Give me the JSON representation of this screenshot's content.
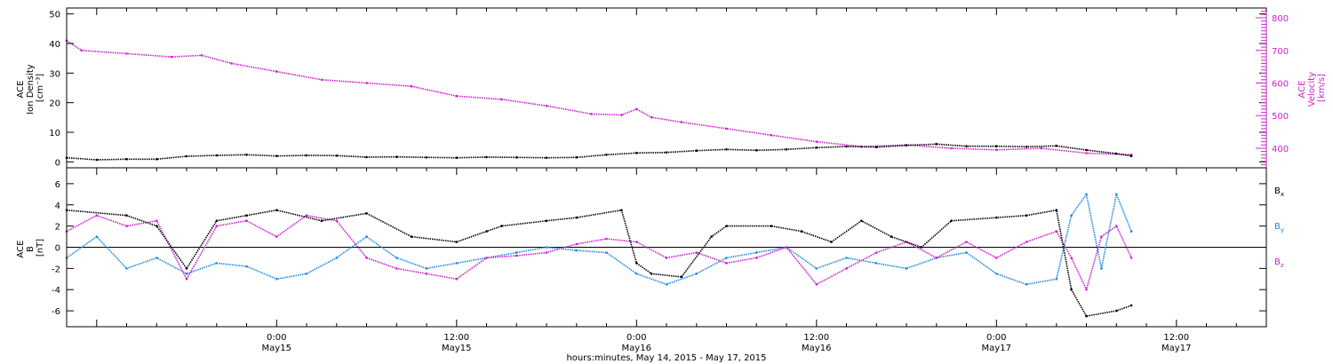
{
  "chart_data": [
    {
      "type": "scatter",
      "panel": "top",
      "xlim": [
        "2015-05-14T10:00",
        "2015-05-17T18:00"
      ],
      "ylabel": [
        "ACE",
        "Ion Density",
        "[cm⁻³]"
      ],
      "ylim": [
        -2,
        52
      ],
      "yticks": [
        0,
        10,
        20,
        30,
        40,
        50
      ],
      "y2label": [
        "ACE",
        "Velocity",
        "[km/s]"
      ],
      "y2lim": [
        340,
        830
      ],
      "y2ticks": [
        400,
        500,
        600,
        700,
        800
      ],
      "grid": false,
      "series": [
        {
          "name": "",
          "axis": "left",
          "color": "#000000",
          "points": [
            [
              "2015-05-14T10:00",
              1.4
            ],
            [
              "2015-05-14T12:00",
              0.7
            ],
            [
              "2015-05-14T14:00",
              0.9
            ],
            [
              "2015-05-14T16:00",
              0.9
            ],
            [
              "2015-05-14T18:00",
              1.9
            ],
            [
              "2015-05-14T20:00",
              2.2
            ],
            [
              "2015-05-14T22:00",
              2.4
            ],
            [
              "2015-05-15T00:00",
              2.0
            ],
            [
              "2015-05-15T02:00",
              2.2
            ],
            [
              "2015-05-15T04:00",
              2.1
            ],
            [
              "2015-05-15T06:00",
              1.6
            ],
            [
              "2015-05-15T08:00",
              1.7
            ],
            [
              "2015-05-15T10:00",
              1.5
            ],
            [
              "2015-05-15T12:00",
              1.4
            ],
            [
              "2015-05-15T14:00",
              1.6
            ],
            [
              "2015-05-15T16:00",
              1.5
            ],
            [
              "2015-05-15T18:00",
              1.4
            ],
            [
              "2015-05-15T20:00",
              1.5
            ],
            [
              "2015-05-15T22:00",
              2.4
            ],
            [
              "2015-05-16T00:00",
              3.0
            ],
            [
              "2015-05-16T02:00",
              3.2
            ],
            [
              "2015-05-16T04:00",
              3.8
            ],
            [
              "2015-05-16T06:00",
              4.2
            ],
            [
              "2015-05-16T08:00",
              3.9
            ],
            [
              "2015-05-16T10:00",
              4.2
            ],
            [
              "2015-05-16T12:00",
              4.8
            ],
            [
              "2015-05-16T14:00",
              5.2
            ],
            [
              "2015-05-16T16:00",
              5.0
            ],
            [
              "2015-05-16T18:00",
              5.6
            ],
            [
              "2015-05-16T20:00",
              6.0
            ],
            [
              "2015-05-16T22:00",
              5.3
            ],
            [
              "2015-05-17T00:00",
              5.3
            ],
            [
              "2015-05-17T02:00",
              5.1
            ],
            [
              "2015-05-17T04:00",
              5.4
            ],
            [
              "2015-05-17T06:00",
              4.0
            ],
            [
              "2015-05-17T08:00",
              2.8
            ],
            [
              "2015-05-17T09:00",
              2.0
            ]
          ]
        },
        {
          "name": "",
          "axis": "right",
          "color": "#cc22cc",
          "points": [
            [
              "2015-05-14T10:00",
              730
            ],
            [
              "2015-05-14T11:00",
              700
            ],
            [
              "2015-05-14T14:00",
              690
            ],
            [
              "2015-05-14T17:00",
              680
            ],
            [
              "2015-05-14T19:00",
              685
            ],
            [
              "2015-05-14T21:00",
              660
            ],
            [
              "2015-05-15T00:00",
              635
            ],
            [
              "2015-05-15T03:00",
              610
            ],
            [
              "2015-05-15T06:00",
              600
            ],
            [
              "2015-05-15T09:00",
              590
            ],
            [
              "2015-05-15T12:00",
              560
            ],
            [
              "2015-05-15T15:00",
              550
            ],
            [
              "2015-05-15T18:00",
              530
            ],
            [
              "2015-05-15T21:00",
              505
            ],
            [
              "2015-05-15T23:00",
              502
            ],
            [
              "2015-05-16T00:00",
              520
            ],
            [
              "2015-05-16T01:00",
              495
            ],
            [
              "2015-05-16T03:00",
              480
            ],
            [
              "2015-05-16T06:00",
              460
            ],
            [
              "2015-05-16T09:00",
              440
            ],
            [
              "2015-05-16T12:00",
              420
            ],
            [
              "2015-05-16T15:00",
              405
            ],
            [
              "2015-05-16T18:00",
              410
            ],
            [
              "2015-05-16T21:00",
              400
            ],
            [
              "2015-05-17T00:00",
              395
            ],
            [
              "2015-05-17T03:00",
              400
            ],
            [
              "2015-05-17T06:00",
              385
            ],
            [
              "2015-05-17T09:00",
              380
            ]
          ]
        }
      ]
    },
    {
      "type": "scatter",
      "panel": "bottom",
      "xlim": [
        "2015-05-14T10:00",
        "2015-05-17T18:00"
      ],
      "xticks": [
        {
          "t": "2015-05-15T00:00",
          "line1": "0:00",
          "line2": "May15"
        },
        {
          "t": "2015-05-15T12:00",
          "line1": "12:00",
          "line2": "May15"
        },
        {
          "t": "2015-05-16T00:00",
          "line1": "0:00",
          "line2": "May16"
        },
        {
          "t": "2015-05-16T12:00",
          "line1": "12:00",
          "line2": "May16"
        },
        {
          "t": "2015-05-17T00:00",
          "line1": "0:00",
          "line2": "May17"
        },
        {
          "t": "2015-05-17T12:00",
          "line1": "12:00",
          "line2": "May17"
        }
      ],
      "xlabel": "hours:minutes, May 14, 2015 - May 17, 2015",
      "ylabel": [
        "ACE",
        "B",
        "[nT]"
      ],
      "ylim": [
        -7.5,
        7.5
      ],
      "yticks": [
        -6,
        -4,
        -2,
        0,
        2,
        4,
        6
      ],
      "zero_line": true,
      "legend_position": "right",
      "series": [
        {
          "name": "Bx",
          "legend": {
            "base": "B",
            "sub": "x"
          },
          "color": "#000000",
          "points": [
            [
              "2015-05-14T10:00",
              3.5
            ],
            [
              "2015-05-14T14:00",
              3.0
            ],
            [
              "2015-05-14T16:00",
              2.0
            ],
            [
              "2015-05-14T18:00",
              -2.0
            ],
            [
              "2015-05-14T20:00",
              2.5
            ],
            [
              "2015-05-14T22:00",
              3.0
            ],
            [
              "2015-05-15T00:00",
              3.5
            ],
            [
              "2015-05-15T03:00",
              2.5
            ],
            [
              "2015-05-15T06:00",
              3.2
            ],
            [
              "2015-05-15T09:00",
              1.0
            ],
            [
              "2015-05-15T12:00",
              0.5
            ],
            [
              "2015-05-15T14:00",
              1.5
            ],
            [
              "2015-05-15T15:00",
              2.0
            ],
            [
              "2015-05-15T18:00",
              2.5
            ],
            [
              "2015-05-15T20:00",
              2.8
            ],
            [
              "2015-05-15T23:00",
              3.5
            ],
            [
              "2015-05-16T00:00",
              -1.5
            ],
            [
              "2015-05-16T01:00",
              -2.5
            ],
            [
              "2015-05-16T03:00",
              -2.8
            ],
            [
              "2015-05-16T05:00",
              1.0
            ],
            [
              "2015-05-16T06:00",
              2.0
            ],
            [
              "2015-05-16T09:00",
              2.0
            ],
            [
              "2015-05-16T11:00",
              1.5
            ],
            [
              "2015-05-16T13:00",
              0.5
            ],
            [
              "2015-05-16T15:00",
              2.5
            ],
            [
              "2015-05-16T17:00",
              1.0
            ],
            [
              "2015-05-16T19:00",
              0.0
            ],
            [
              "2015-05-16T21:00",
              2.5
            ],
            [
              "2015-05-17T00:00",
              2.8
            ],
            [
              "2015-05-17T02:00",
              3.0
            ],
            [
              "2015-05-17T04:00",
              3.5
            ],
            [
              "2015-05-17T05:00",
              -4.0
            ],
            [
              "2015-05-17T06:00",
              -6.5
            ],
            [
              "2015-05-17T08:00",
              -6.0
            ],
            [
              "2015-05-17T09:00",
              -5.5
            ]
          ]
        },
        {
          "name": "By",
          "legend": {
            "base": "B",
            "sub": "y"
          },
          "color": "#1f88e0",
          "points": [
            [
              "2015-05-14T10:00",
              -1.0
            ],
            [
              "2015-05-14T12:00",
              1.0
            ],
            [
              "2015-05-14T14:00",
              -2.0
            ],
            [
              "2015-05-14T16:00",
              -1.0
            ],
            [
              "2015-05-14T18:00",
              -2.5
            ],
            [
              "2015-05-14T20:00",
              -1.5
            ],
            [
              "2015-05-14T22:00",
              -1.8
            ],
            [
              "2015-05-15T00:00",
              -3.0
            ],
            [
              "2015-05-15T02:00",
              -2.5
            ],
            [
              "2015-05-15T04:00",
              -1.0
            ],
            [
              "2015-05-15T06:00",
              1.0
            ],
            [
              "2015-05-15T08:00",
              -1.0
            ],
            [
              "2015-05-15T10:00",
              -2.0
            ],
            [
              "2015-05-15T12:00",
              -1.5
            ],
            [
              "2015-05-15T14:00",
              -1.0
            ],
            [
              "2015-05-15T16:00",
              -0.5
            ],
            [
              "2015-05-15T18:00",
              0.0
            ],
            [
              "2015-05-15T20:00",
              -0.3
            ],
            [
              "2015-05-15T22:00",
              -0.5
            ],
            [
              "2015-05-16T00:00",
              -2.5
            ],
            [
              "2015-05-16T02:00",
              -3.5
            ],
            [
              "2015-05-16T04:00",
              -2.5
            ],
            [
              "2015-05-16T06:00",
              -1.0
            ],
            [
              "2015-05-16T08:00",
              -0.5
            ],
            [
              "2015-05-16T10:00",
              0.0
            ],
            [
              "2015-05-16T12:00",
              -2.0
            ],
            [
              "2015-05-16T14:00",
              -1.0
            ],
            [
              "2015-05-16T16:00",
              -1.5
            ],
            [
              "2015-05-16T18:00",
              -2.0
            ],
            [
              "2015-05-16T20:00",
              -1.0
            ],
            [
              "2015-05-16T22:00",
              -0.5
            ],
            [
              "2015-05-17T00:00",
              -2.5
            ],
            [
              "2015-05-17T02:00",
              -3.5
            ],
            [
              "2015-05-17T04:00",
              -3.0
            ],
            [
              "2015-05-17T05:00",
              3.0
            ],
            [
              "2015-05-17T06:00",
              5.0
            ],
            [
              "2015-05-17T07:00",
              -2.0
            ],
            [
              "2015-05-17T08:00",
              5.0
            ],
            [
              "2015-05-17T09:00",
              1.5
            ]
          ]
        },
        {
          "name": "Bz",
          "legend": {
            "base": "B",
            "sub": "z"
          },
          "color": "#cc22cc",
          "points": [
            [
              "2015-05-14T10:00",
              1.5
            ],
            [
              "2015-05-14T12:00",
              3.0
            ],
            [
              "2015-05-14T14:00",
              2.0
            ],
            [
              "2015-05-14T16:00",
              2.5
            ],
            [
              "2015-05-14T18:00",
              -3.0
            ],
            [
              "2015-05-14T20:00",
              2.0
            ],
            [
              "2015-05-14T22:00",
              2.5
            ],
            [
              "2015-05-15T00:00",
              1.0
            ],
            [
              "2015-05-15T02:00",
              3.0
            ],
            [
              "2015-05-15T04:00",
              2.5
            ],
            [
              "2015-05-15T06:00",
              -1.0
            ],
            [
              "2015-05-15T08:00",
              -2.0
            ],
            [
              "2015-05-15T10:00",
              -2.5
            ],
            [
              "2015-05-15T12:00",
              -3.0
            ],
            [
              "2015-05-15T14:00",
              -1.0
            ],
            [
              "2015-05-15T16:00",
              -0.8
            ],
            [
              "2015-05-15T18:00",
              -0.5
            ],
            [
              "2015-05-15T20:00",
              0.3
            ],
            [
              "2015-05-15T22:00",
              0.8
            ],
            [
              "2015-05-16T00:00",
              0.5
            ],
            [
              "2015-05-16T02:00",
              -1.0
            ],
            [
              "2015-05-16T04:00",
              -0.5
            ],
            [
              "2015-05-16T06:00",
              -1.5
            ],
            [
              "2015-05-16T08:00",
              -1.0
            ],
            [
              "2015-05-16T10:00",
              0.0
            ],
            [
              "2015-05-16T12:00",
              -3.5
            ],
            [
              "2015-05-16T14:00",
              -2.0
            ],
            [
              "2015-05-16T16:00",
              -0.5
            ],
            [
              "2015-05-16T18:00",
              0.5
            ],
            [
              "2015-05-16T20:00",
              -1.0
            ],
            [
              "2015-05-16T22:00",
              0.5
            ],
            [
              "2015-05-17T00:00",
              -1.0
            ],
            [
              "2015-05-17T02:00",
              0.5
            ],
            [
              "2015-05-17T04:00",
              1.5
            ],
            [
              "2015-05-17T05:00",
              -1.0
            ],
            [
              "2015-05-17T06:00",
              -4.0
            ],
            [
              "2015-05-17T07:00",
              1.0
            ],
            [
              "2015-05-17T08:00",
              2.0
            ],
            [
              "2015-05-17T09:00",
              -1.0
            ]
          ]
        }
      ]
    }
  ]
}
